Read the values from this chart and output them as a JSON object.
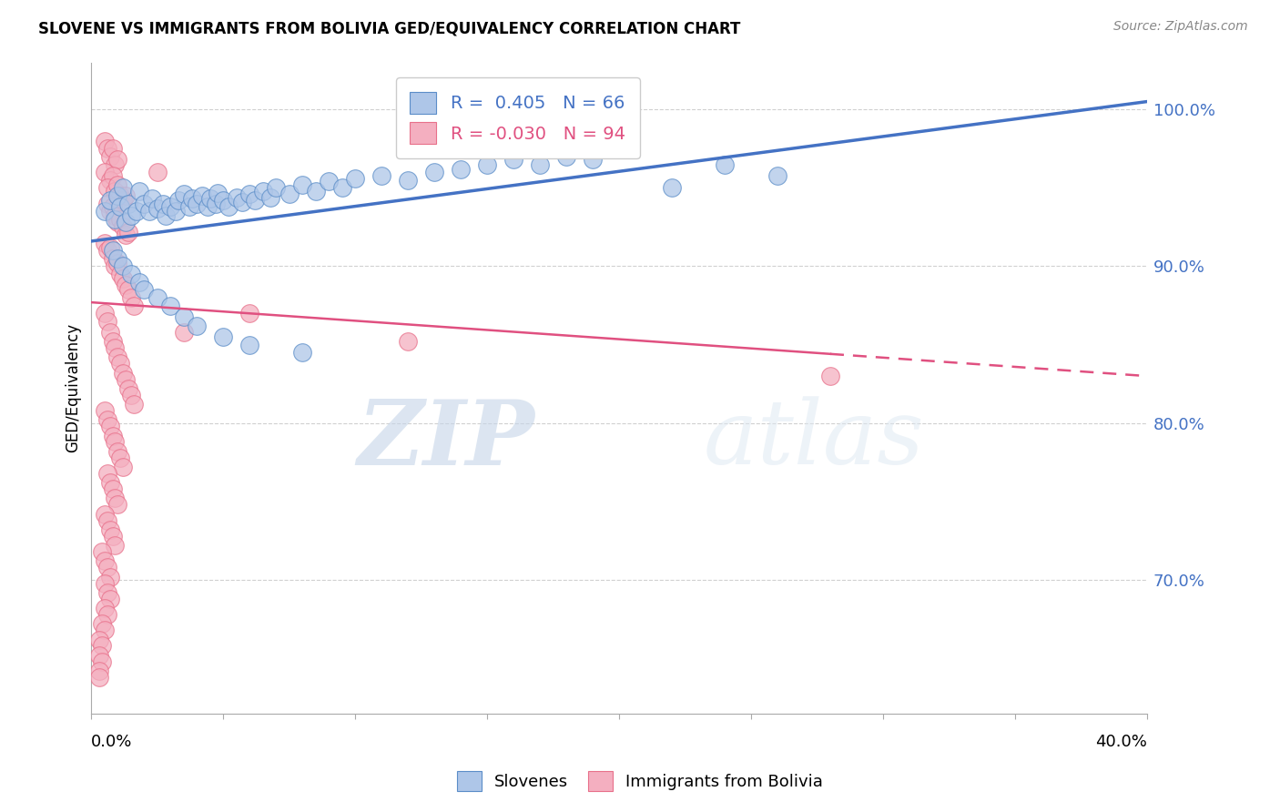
{
  "title": "SLOVENE VS IMMIGRANTS FROM BOLIVIA GED/EQUIVALENCY CORRELATION CHART",
  "source": "Source: ZipAtlas.com",
  "ylabel": "GED/Equivalency",
  "yaxis_labels": [
    "100.0%",
    "90.0%",
    "80.0%",
    "70.0%"
  ],
  "yaxis_values": [
    1.0,
    0.9,
    0.8,
    0.7
  ],
  "x_min": 0.0,
  "x_max": 0.4,
  "y_min": 0.615,
  "y_max": 1.03,
  "legend_blue_r": "0.405",
  "legend_blue_n": "66",
  "legend_pink_r": "-0.030",
  "legend_pink_n": "94",
  "legend_label_blue": "Slovenes",
  "legend_label_pink": "Immigrants from Bolivia",
  "blue_color": "#aec6e8",
  "pink_color": "#f4afc0",
  "blue_edge_color": "#5b8dc8",
  "pink_edge_color": "#e8708a",
  "blue_line_color": "#4472c4",
  "pink_line_color": "#e05080",
  "blue_scatter": [
    [
      0.005,
      0.935
    ],
    [
      0.007,
      0.942
    ],
    [
      0.009,
      0.93
    ],
    [
      0.01,
      0.945
    ],
    [
      0.011,
      0.938
    ],
    [
      0.012,
      0.95
    ],
    [
      0.013,
      0.928
    ],
    [
      0.014,
      0.94
    ],
    [
      0.015,
      0.932
    ],
    [
      0.017,
      0.935
    ],
    [
      0.018,
      0.948
    ],
    [
      0.02,
      0.94
    ],
    [
      0.022,
      0.935
    ],
    [
      0.023,
      0.943
    ],
    [
      0.025,
      0.937
    ],
    [
      0.027,
      0.94
    ],
    [
      0.028,
      0.932
    ],
    [
      0.03,
      0.938
    ],
    [
      0.032,
      0.935
    ],
    [
      0.033,
      0.942
    ],
    [
      0.035,
      0.946
    ],
    [
      0.037,
      0.938
    ],
    [
      0.038,
      0.943
    ],
    [
      0.04,
      0.94
    ],
    [
      0.042,
      0.945
    ],
    [
      0.044,
      0.938
    ],
    [
      0.045,
      0.943
    ],
    [
      0.047,
      0.94
    ],
    [
      0.048,
      0.947
    ],
    [
      0.05,
      0.942
    ],
    [
      0.052,
      0.938
    ],
    [
      0.055,
      0.944
    ],
    [
      0.057,
      0.941
    ],
    [
      0.06,
      0.946
    ],
    [
      0.062,
      0.942
    ],
    [
      0.065,
      0.948
    ],
    [
      0.068,
      0.944
    ],
    [
      0.07,
      0.95
    ],
    [
      0.075,
      0.946
    ],
    [
      0.08,
      0.952
    ],
    [
      0.085,
      0.948
    ],
    [
      0.09,
      0.954
    ],
    [
      0.095,
      0.95
    ],
    [
      0.1,
      0.956
    ],
    [
      0.11,
      0.958
    ],
    [
      0.12,
      0.955
    ],
    [
      0.13,
      0.96
    ],
    [
      0.14,
      0.962
    ],
    [
      0.15,
      0.965
    ],
    [
      0.16,
      0.968
    ],
    [
      0.17,
      0.965
    ],
    [
      0.18,
      0.97
    ],
    [
      0.19,
      0.968
    ],
    [
      0.008,
      0.91
    ],
    [
      0.01,
      0.905
    ],
    [
      0.012,
      0.9
    ],
    [
      0.015,
      0.895
    ],
    [
      0.018,
      0.89
    ],
    [
      0.02,
      0.885
    ],
    [
      0.025,
      0.88
    ],
    [
      0.03,
      0.875
    ],
    [
      0.035,
      0.868
    ],
    [
      0.04,
      0.862
    ],
    [
      0.05,
      0.855
    ],
    [
      0.06,
      0.85
    ],
    [
      0.08,
      0.845
    ],
    [
      0.24,
      0.965
    ],
    [
      0.22,
      0.95
    ],
    [
      0.26,
      0.958
    ]
  ],
  "pink_scatter": [
    [
      0.005,
      0.98
    ],
    [
      0.006,
      0.975
    ],
    [
      0.007,
      0.97
    ],
    [
      0.008,
      0.975
    ],
    [
      0.009,
      0.965
    ],
    [
      0.01,
      0.968
    ],
    [
      0.005,
      0.96
    ],
    [
      0.007,
      0.955
    ],
    [
      0.008,
      0.958
    ],
    [
      0.006,
      0.95
    ],
    [
      0.009,
      0.948
    ],
    [
      0.01,
      0.952
    ],
    [
      0.011,
      0.945
    ],
    [
      0.012,
      0.942
    ],
    [
      0.013,
      0.945
    ],
    [
      0.006,
      0.94
    ],
    [
      0.007,
      0.935
    ],
    [
      0.008,
      0.938
    ],
    [
      0.009,
      0.932
    ],
    [
      0.01,
      0.928
    ],
    [
      0.011,
      0.93
    ],
    [
      0.012,
      0.925
    ],
    [
      0.013,
      0.92
    ],
    [
      0.014,
      0.922
    ],
    [
      0.005,
      0.915
    ],
    [
      0.006,
      0.91
    ],
    [
      0.007,
      0.912
    ],
    [
      0.008,
      0.905
    ],
    [
      0.009,
      0.9
    ],
    [
      0.01,
      0.902
    ],
    [
      0.011,
      0.895
    ],
    [
      0.012,
      0.892
    ],
    [
      0.013,
      0.888
    ],
    [
      0.014,
      0.885
    ],
    [
      0.015,
      0.88
    ],
    [
      0.016,
      0.875
    ],
    [
      0.005,
      0.87
    ],
    [
      0.006,
      0.865
    ],
    [
      0.007,
      0.858
    ],
    [
      0.008,
      0.852
    ],
    [
      0.009,
      0.848
    ],
    [
      0.01,
      0.842
    ],
    [
      0.011,
      0.838
    ],
    [
      0.012,
      0.832
    ],
    [
      0.013,
      0.828
    ],
    [
      0.014,
      0.822
    ],
    [
      0.015,
      0.818
    ],
    [
      0.016,
      0.812
    ],
    [
      0.005,
      0.808
    ],
    [
      0.006,
      0.802
    ],
    [
      0.007,
      0.798
    ],
    [
      0.008,
      0.792
    ],
    [
      0.009,
      0.788
    ],
    [
      0.01,
      0.782
    ],
    [
      0.011,
      0.778
    ],
    [
      0.012,
      0.772
    ],
    [
      0.006,
      0.768
    ],
    [
      0.007,
      0.762
    ],
    [
      0.008,
      0.758
    ],
    [
      0.009,
      0.752
    ],
    [
      0.01,
      0.748
    ],
    [
      0.005,
      0.742
    ],
    [
      0.006,
      0.738
    ],
    [
      0.007,
      0.732
    ],
    [
      0.008,
      0.728
    ],
    [
      0.009,
      0.722
    ],
    [
      0.004,
      0.718
    ],
    [
      0.005,
      0.712
    ],
    [
      0.006,
      0.708
    ],
    [
      0.007,
      0.702
    ],
    [
      0.005,
      0.698
    ],
    [
      0.006,
      0.692
    ],
    [
      0.007,
      0.688
    ],
    [
      0.005,
      0.682
    ],
    [
      0.006,
      0.678
    ],
    [
      0.004,
      0.672
    ],
    [
      0.005,
      0.668
    ],
    [
      0.003,
      0.662
    ],
    [
      0.004,
      0.658
    ],
    [
      0.003,
      0.652
    ],
    [
      0.004,
      0.648
    ],
    [
      0.003,
      0.642
    ],
    [
      0.003,
      0.638
    ],
    [
      0.025,
      0.96
    ],
    [
      0.035,
      0.858
    ],
    [
      0.06,
      0.87
    ],
    [
      0.12,
      0.852
    ],
    [
      0.28,
      0.83
    ]
  ],
  "blue_line_x": [
    0.0,
    0.4
  ],
  "blue_line_y": [
    0.916,
    1.005
  ],
  "pink_line_x": [
    0.0,
    0.4
  ],
  "pink_line_y": [
    0.877,
    0.83
  ],
  "watermark_zip": "ZIP",
  "watermark_atlas": "atlas",
  "grid_color": "#d0d0d0",
  "background_color": "#ffffff",
  "title_fontsize": 12,
  "source_fontsize": 10
}
